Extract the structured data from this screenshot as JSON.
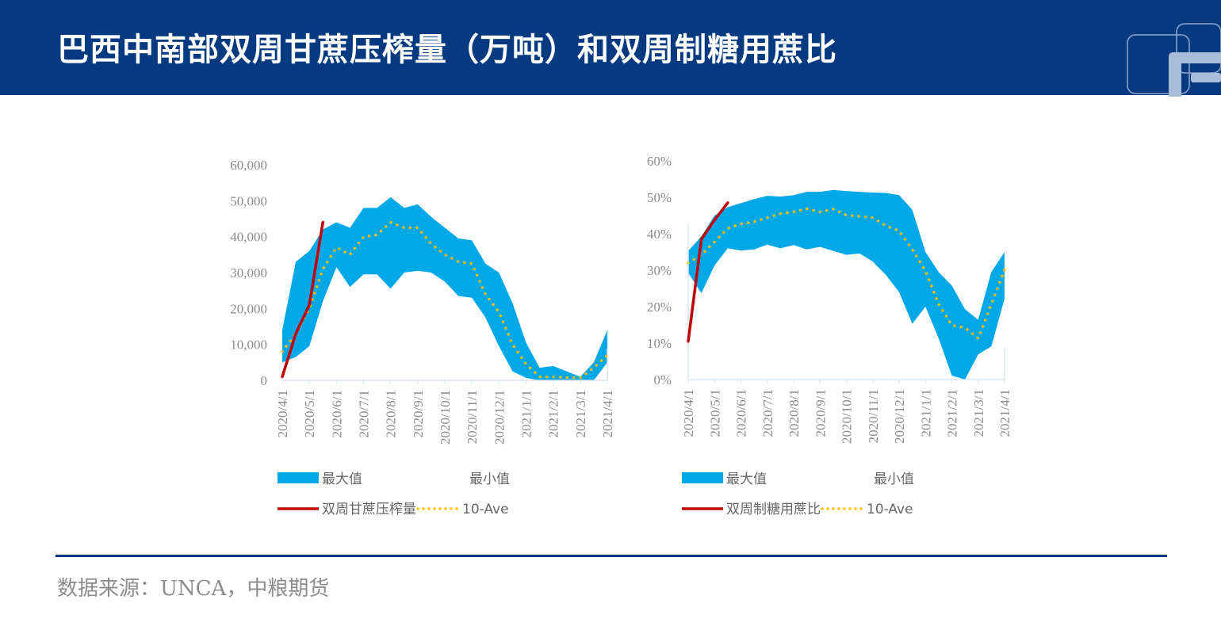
{
  "header": {
    "title": "巴西中南部双周甘蔗压榨量（万吨）和双周制糖用蔗比"
  },
  "footer": {
    "source": "数据来源：UNCA，中粮期货"
  },
  "colors": {
    "band": "#00a8e8",
    "current": "#c00000",
    "ave": "#ffc000",
    "header": "#063a80"
  },
  "chart_data": [
    {
      "type": "area",
      "x_labels": [
        "2020/4/1",
        "2020/5/1",
        "2020/6/1",
        "2020/7/1",
        "2020/8/1",
        "2020/9/1",
        "2020/10/1",
        "2020/11/1",
        "2020/12/1",
        "2021/1/1",
        "2021/2/1",
        "2021/3/1",
        "2021/4/1"
      ],
      "y_ticks": [
        "0",
        "10,000",
        "20,000",
        "30,000",
        "40,000",
        "50,000",
        "60,000"
      ],
      "ylim": [
        0,
        60000
      ],
      "legend": {
        "max": "最大值",
        "min": "最小值",
        "current": "双周甘蔗压榨量",
        "ave": "10-Ave"
      },
      "max": [
        14000,
        33000,
        36000,
        42000,
        44000,
        42500,
        48000,
        48000,
        51000,
        48000,
        49000,
        45500,
        42500,
        39500,
        39000,
        32500,
        30000,
        21500,
        10500,
        3500,
        4000,
        2500,
        1000,
        5000,
        14000
      ],
      "min": [
        5000,
        6500,
        9500,
        22000,
        31500,
        26000,
        29500,
        29500,
        25500,
        30000,
        30500,
        30000,
        27500,
        23500,
        23000,
        17500,
        9500,
        2500,
        700,
        0,
        0,
        0,
        0,
        0,
        5000
      ],
      "ave": [
        8000,
        13000,
        20000,
        31000,
        37000,
        35000,
        40000,
        40500,
        44000,
        42500,
        42500,
        38000,
        35000,
        33000,
        32500,
        24000,
        19000,
        10000,
        4500,
        1000,
        1000,
        800,
        700,
        3500,
        7000
      ],
      "current": [
        1000,
        13000,
        21000,
        44000
      ]
    },
    {
      "type": "area",
      "x_labels": [
        "2020/4/1",
        "2020/5/1",
        "2020/6/1",
        "2020/7/1",
        "2020/8/1",
        "2020/9/1",
        "2020/10/1",
        "2020/11/1",
        "2020/12/1",
        "2021/1/1",
        "2021/2/1",
        "2021/3/1",
        "2021/4/1"
      ],
      "y_ticks": [
        "0%",
        "10%",
        "20%",
        "30%",
        "40%",
        "50%",
        "60%"
      ],
      "ylim": [
        0,
        60
      ],
      "legend": {
        "max": "最大值",
        "min": "最小值",
        "current": "双周制糖用蔗比",
        "ave": "10-Ave"
      },
      "max": [
        35.3,
        39.3,
        45,
        47.3,
        48.4,
        49.5,
        50.4,
        50.2,
        50.6,
        51.5,
        51.5,
        52,
        51.7,
        51.5,
        51.3,
        51.2,
        50.6,
        46.6,
        35,
        29.5,
        25.8,
        19.3,
        16.4,
        29.5,
        35
      ],
      "min": [
        29.3,
        23.7,
        31.3,
        36,
        35.4,
        35.7,
        37,
        36,
        36.9,
        35.7,
        36.4,
        35.3,
        34.2,
        34.6,
        32.4,
        28.7,
        24,
        15.3,
        20,
        11.3,
        1.1,
        0,
        6.9,
        9.1,
        22.2
      ],
      "ave": [
        32,
        34.2,
        37.8,
        41.5,
        42.7,
        43.3,
        44.4,
        45.5,
        46,
        46.9,
        46,
        46.8,
        45.1,
        44.8,
        44.4,
        42.2,
        40.8,
        35.7,
        29.8,
        20.7,
        14.9,
        14.2,
        11.3,
        20.7,
        30.2
      ],
      "current": [
        10.5,
        38.5,
        43.8,
        48.5
      ]
    }
  ]
}
